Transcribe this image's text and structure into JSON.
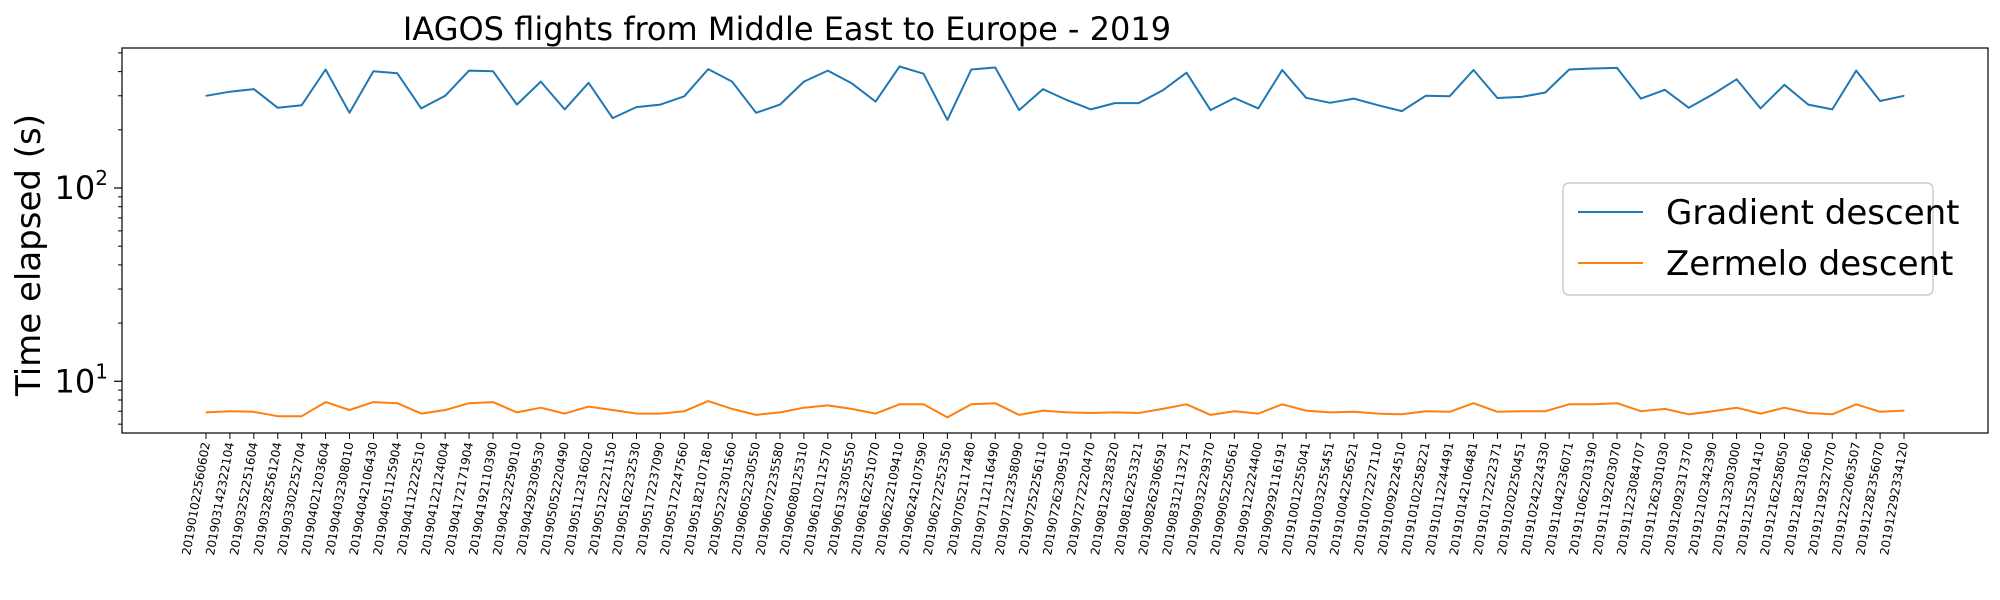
{
  "chart_data": {
    "type": "line",
    "title": "IAGOS flights from Middle East to Europe - 2019",
    "xlabel": "",
    "ylabel": "Time elapsed (s)",
    "yscale": "log",
    "ylim": [
      5.4,
      530
    ],
    "yticks": [
      {
        "value": 10,
        "base": "10",
        "exp": "1"
      },
      {
        "value": 100,
        "base": "10",
        "exp": "2"
      }
    ],
    "grid": false,
    "legend_position": "right",
    "categories": [
      "201901022560602",
      "201903142322104",
      "201903252251604",
      "201903282561204",
      "201903302252704",
      "201904021203604",
      "201904032308010",
      "201904042106430",
      "201904051125904",
      "201904112222510",
      "201904122124004",
      "201904172171904",
      "201904192110390",
      "201904232259010",
      "201904292309530",
      "201905052220490",
      "201905112316020",
      "201905122221150",
      "201905162232530",
      "201905172237090",
      "201905172247560",
      "201905182107180",
      "201905222301560",
      "201906052230550",
      "201906072235580",
      "201906080125310",
      "201906102112570",
      "201906132305550",
      "201906162251070",
      "201906222109410",
      "201906242107590",
      "201906272252350",
      "201907052117480",
      "201907112116490",
      "201907122358090",
      "201907252256110",
      "201907262309510",
      "201907272220470",
      "201908122328320",
      "201908162253321",
      "201908262306591",
      "201908312113271",
      "201909032229370",
      "201909052250561",
      "201909122224400",
      "201909292116191",
      "201910012255041",
      "201910032255451",
      "201910042256521",
      "201910072227110",
      "201910092224510",
      "201910102258221",
      "201910112244491",
      "201910142106481",
      "201910172222371",
      "201910202250451",
      "201910242224330",
      "201911042236071",
      "201911062203190",
      "201911192203070",
      "201911223084707",
      "201911262301030",
      "201912092317370",
      "201912102342390",
      "201912132303000",
      "201912152301410",
      "201912162258050",
      "201912182310360",
      "201912192327070",
      "201912222063507",
      "201912282356070",
      "201912292334120"
    ],
    "series": [
      {
        "name": "Gradient descent",
        "color": "#1f77b4",
        "values": [
          300,
          315,
          325,
          260,
          268,
          410,
          245,
          402,
          392,
          258,
          300,
          405,
          402,
          270,
          355,
          255,
          350,
          230,
          262,
          270,
          298,
          412,
          355,
          245,
          270,
          355,
          405,
          348,
          280,
          425,
          390,
          225,
          410,
          420,
          253,
          325,
          285,
          255,
          275,
          275,
          320,
          395,
          253,
          292,
          258,
          408,
          293,
          276,
          290,
          268,
          250,
          300,
          298,
          408,
          292,
          296,
          312,
          410,
          415,
          418,
          290,
          322,
          260,
          305,
          365,
          258,
          342,
          270,
          255,
          405,
          282,
          300
        ]
      },
      {
        "name": "Zermelo descent",
        "color": "#ff7f0e",
        "values": [
          6.9,
          7.0,
          6.95,
          6.6,
          6.6,
          7.8,
          7.1,
          7.8,
          7.7,
          6.8,
          7.1,
          7.7,
          7.8,
          6.9,
          7.3,
          6.8,
          7.4,
          7.1,
          6.8,
          6.8,
          7.0,
          7.9,
          7.2,
          6.7,
          6.9,
          7.3,
          7.5,
          7.2,
          6.8,
          7.6,
          7.6,
          6.5,
          7.6,
          7.7,
          6.7,
          7.05,
          6.9,
          6.85,
          6.9,
          6.85,
          7.2,
          7.6,
          6.7,
          7.0,
          6.8,
          7.6,
          7.05,
          6.9,
          6.95,
          6.8,
          6.75,
          7.0,
          6.95,
          7.7,
          6.95,
          7.0,
          7.0,
          7.6,
          7.6,
          7.7,
          7.0,
          7.2,
          6.75,
          7.0,
          7.3,
          6.8,
          7.3,
          6.85,
          6.75,
          7.6,
          6.95,
          7.05
        ]
      }
    ]
  }
}
